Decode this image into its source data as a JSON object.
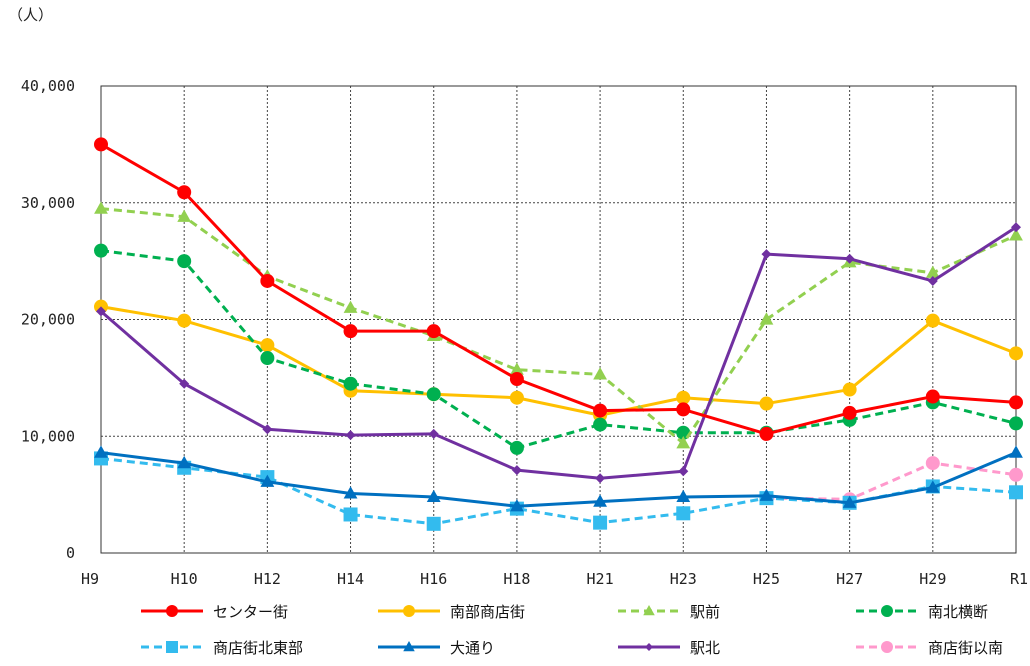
{
  "chart_data": {
    "type": "line",
    "unit_label": "（人）",
    "categories": [
      "H9",
      "H10",
      "H12",
      "H14",
      "H16",
      "H18",
      "H21",
      "H23",
      "H25",
      "H27",
      "H29",
      "R1"
    ],
    "y_tick_labels": [
      "0",
      "10,000",
      "20,000",
      "30,000",
      "40,000"
    ],
    "ylim": [
      0,
      40000
    ],
    "grid": true,
    "legend_position": "bottom",
    "series": [
      {
        "name": "センター街",
        "color": "#ff0000",
        "dash": false,
        "marker": "circle",
        "values": [
          35000,
          30900,
          23300,
          19000,
          19000,
          14900,
          12200,
          12300,
          10200,
          12000,
          13400,
          12900
        ]
      },
      {
        "name": "南部商店街",
        "color": "#ffc000",
        "dash": false,
        "marker": "circle",
        "values": [
          21100,
          19900,
          17800,
          13900,
          13600,
          13300,
          11800,
          13300,
          12800,
          14000,
          19900,
          17100
        ]
      },
      {
        "name": "駅前",
        "color": "#92d050",
        "dash": true,
        "marker": "triangle",
        "values": [
          29500,
          28800,
          23700,
          21000,
          18600,
          15700,
          15300,
          9400,
          20000,
          24900,
          24000,
          27200
        ]
      },
      {
        "name": "南北横断",
        "color": "#00b050",
        "dash": true,
        "marker": "circle",
        "values": [
          25900,
          25000,
          16700,
          14500,
          13600,
          9000,
          11000,
          10300,
          10300,
          11400,
          12900,
          11100
        ]
      },
      {
        "name": "商店街北東部",
        "color": "#33bbee",
        "dash": true,
        "marker": "square",
        "values": [
          8100,
          7300,
          6500,
          3300,
          2500,
          3800,
          2600,
          3400,
          4700,
          4300,
          5700,
          5200
        ]
      },
      {
        "name": "大通り",
        "color": "#0070c0",
        "dash": false,
        "marker": "triangle",
        "values": [
          8600,
          7700,
          6100,
          5100,
          4800,
          4000,
          4400,
          4800,
          4900,
          4300,
          5600,
          8600
        ]
      },
      {
        "name": "駅北",
        "color": "#7030a0",
        "dash": false,
        "marker": "diamond",
        "values": [
          20700,
          14500,
          10600,
          10100,
          10200,
          7100,
          6400,
          7000,
          25600,
          25200,
          23300,
          27900
        ]
      },
      {
        "name": "商店街以南",
        "color": "#ff99cc",
        "dash": true,
        "marker": "circle",
        "values": [
          null,
          null,
          null,
          null,
          null,
          null,
          null,
          null,
          4700,
          4600,
          7700,
          6700
        ]
      }
    ]
  }
}
